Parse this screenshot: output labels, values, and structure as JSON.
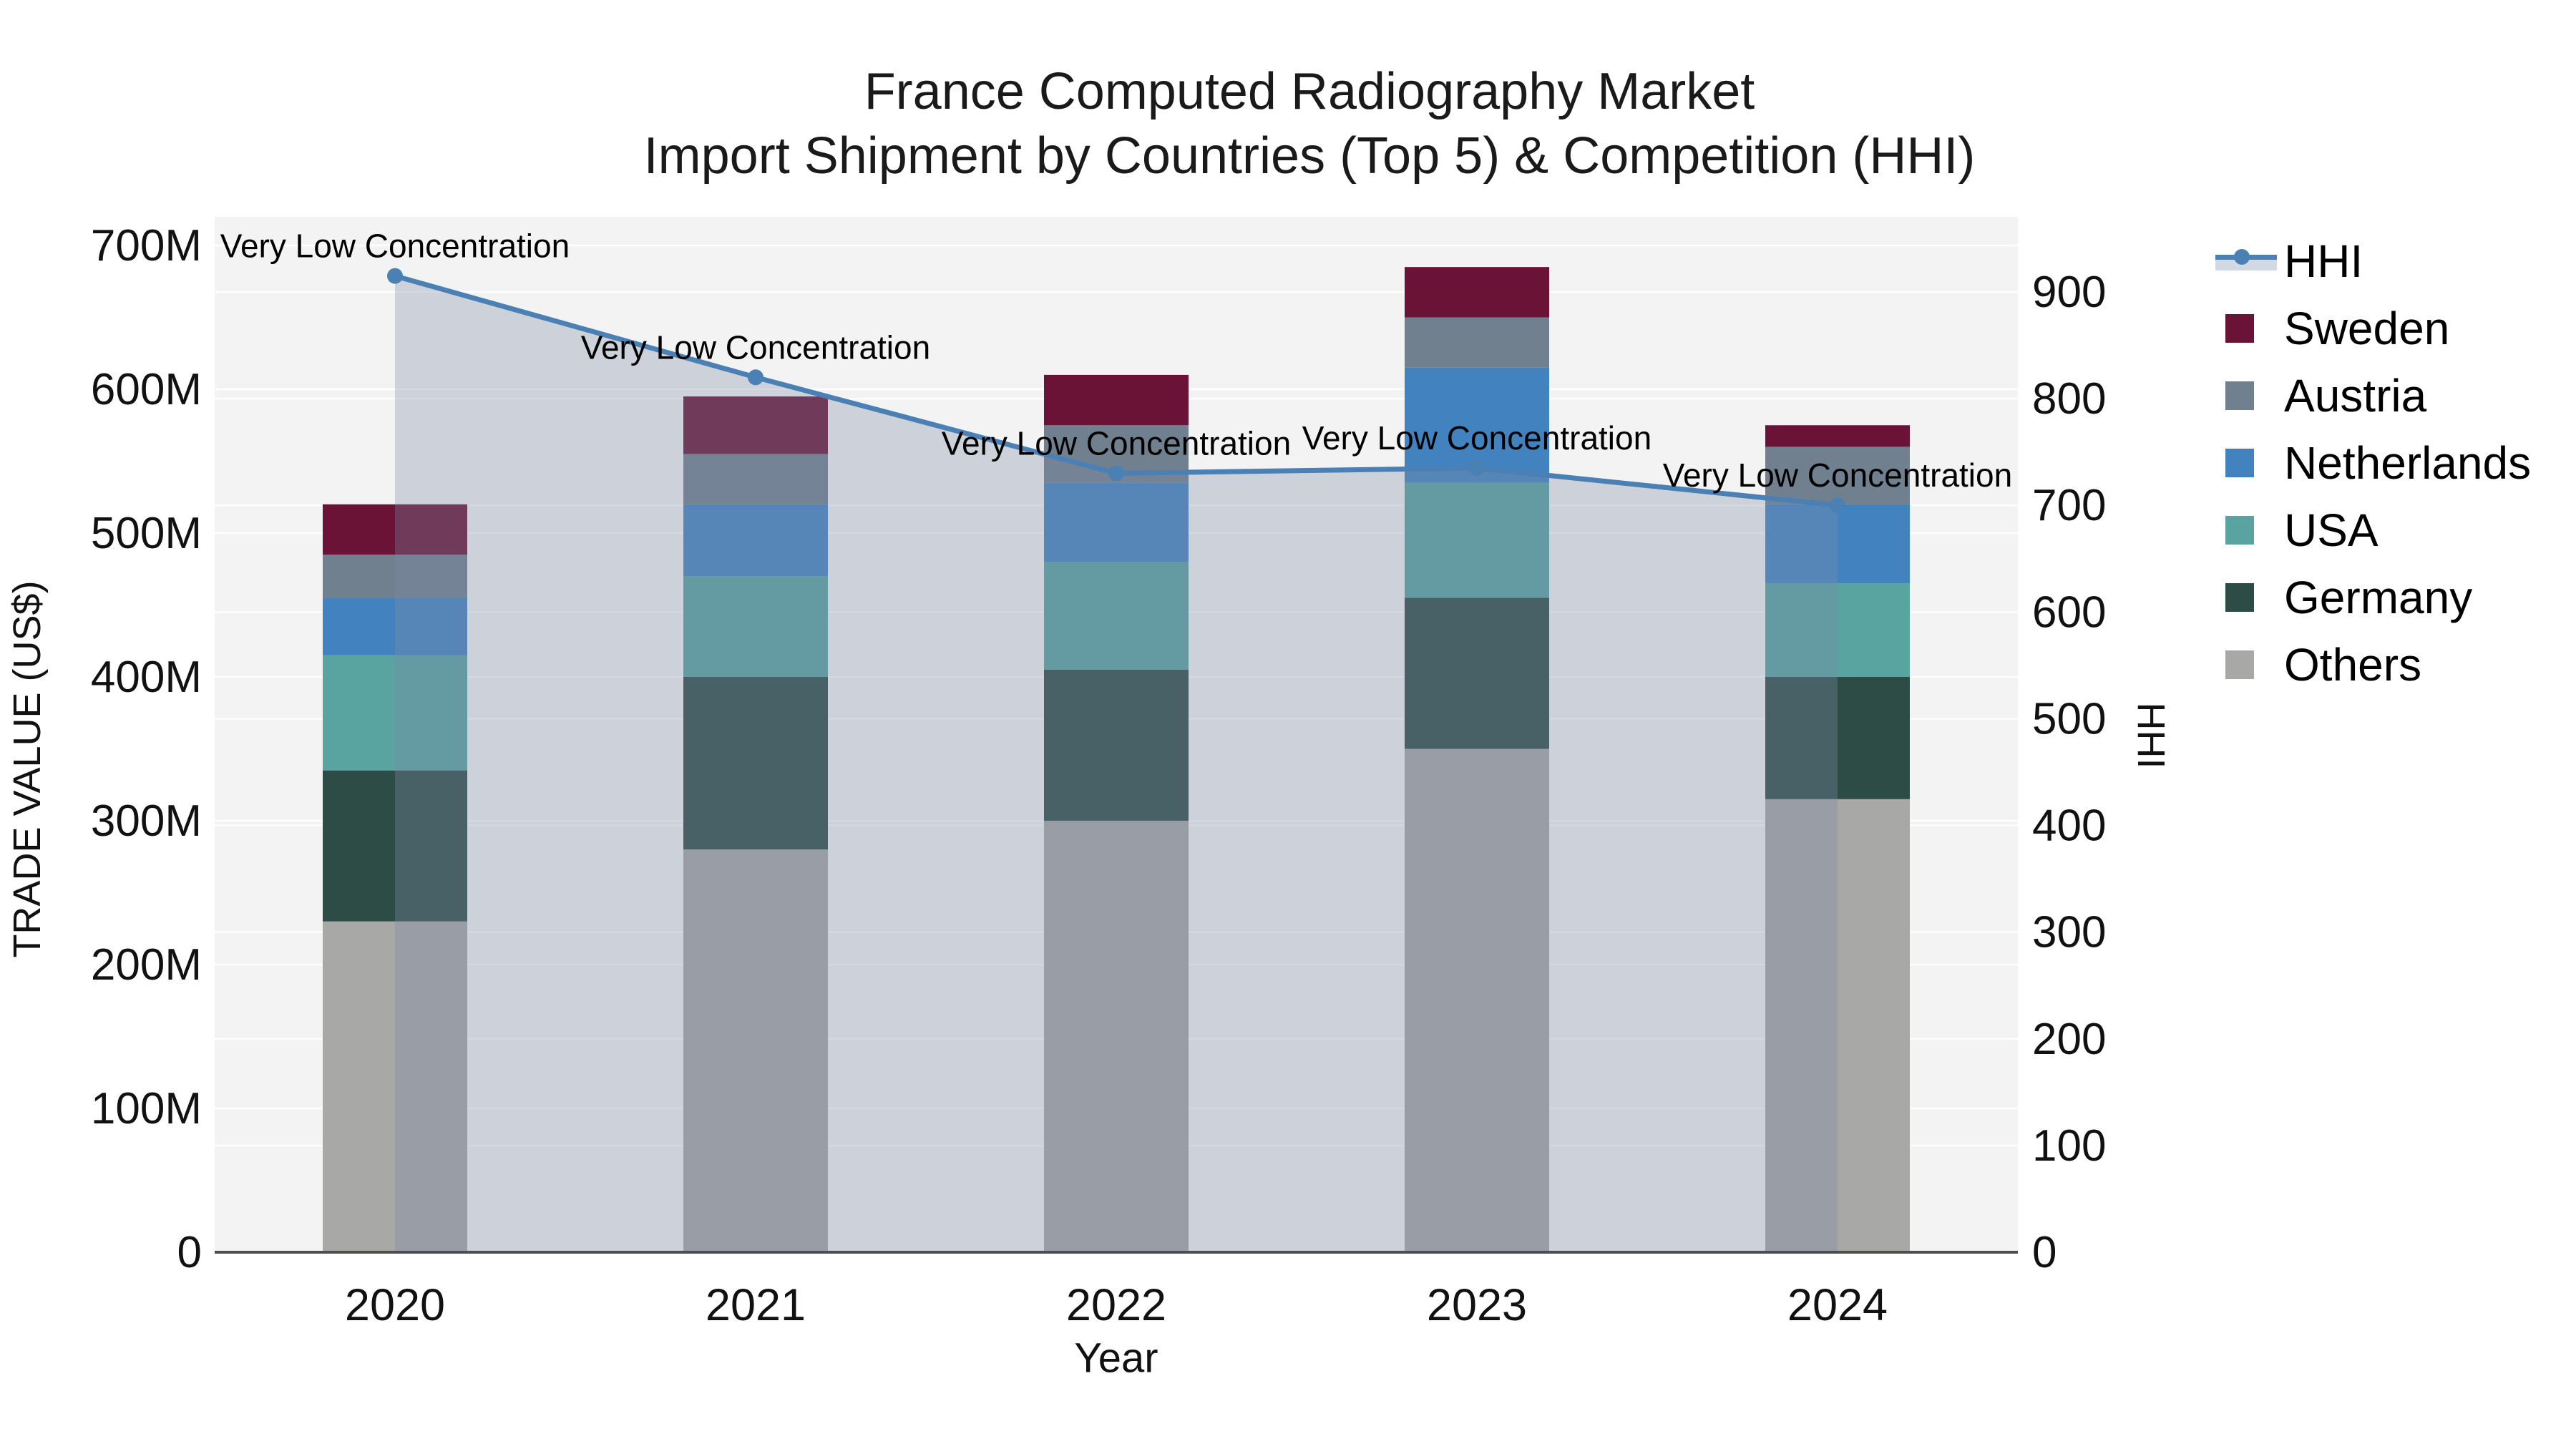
{
  "chart_data": {
    "type": "combo-stacked-bar-line",
    "title": "France Computed Radiography Market",
    "subtitle": "Import Shipment by Countries (Top 5) & Competition (HHI)",
    "xlabel": "Year",
    "categories": [
      "2020",
      "2021",
      "2022",
      "2023",
      "2024"
    ],
    "stack_unit": "million US$",
    "series": [
      {
        "name": "Others",
        "color_key": "Others",
        "values": [
          230,
          280,
          300,
          350,
          315
        ]
      },
      {
        "name": "Germany",
        "color_key": "Germany",
        "values": [
          105,
          120,
          105,
          105,
          85
        ]
      },
      {
        "name": "USA",
        "color_key": "USA",
        "values": [
          80,
          70,
          75,
          80,
          65
        ]
      },
      {
        "name": "Netherlands",
        "color_key": "Netherlands",
        "values": [
          40,
          50,
          55,
          80,
          55
        ]
      },
      {
        "name": "Austria",
        "color_key": "Austria",
        "values": [
          30,
          35,
          40,
          35,
          40
        ]
      },
      {
        "name": "Sweden",
        "color_key": "Sweden",
        "values": [
          35,
          40,
          35,
          35,
          15
        ]
      }
    ],
    "stack_totals": [
      520,
      595,
      610,
      685,
      575
    ],
    "line_series": {
      "name": "HHI",
      "axis": "right",
      "values": [
        915,
        820,
        730,
        735,
        700
      ],
      "annotations": [
        "Very Low Concentration",
        "Very Low Concentration",
        "Very Low Concentration",
        "Very Low Concentration",
        "Very Low Concentration"
      ]
    },
    "left_axis": {
      "title": "TRADE VALUE (US$)",
      "range": [
        0,
        700000000
      ],
      "ticks": [
        {
          "value": 0,
          "label": "0"
        },
        {
          "value": 100,
          "label": "100M"
        },
        {
          "value": 200,
          "label": "200M"
        },
        {
          "value": 300,
          "label": "300M"
        },
        {
          "value": 400,
          "label": "400M"
        },
        {
          "value": 500,
          "label": "500M"
        },
        {
          "value": 600,
          "label": "600M"
        },
        {
          "value": 700,
          "label": "700M"
        }
      ]
    },
    "right_axis": {
      "title": "HHI",
      "range": [
        0,
        900
      ],
      "ticks": [
        {
          "value": 0,
          "label": "0"
        },
        {
          "value": 100,
          "label": "100"
        },
        {
          "value": 200,
          "label": "200"
        },
        {
          "value": 300,
          "label": "300"
        },
        {
          "value": 400,
          "label": "400"
        },
        {
          "value": 500,
          "label": "500"
        },
        {
          "value": 600,
          "label": "600"
        },
        {
          "value": 700,
          "label": "700"
        },
        {
          "value": 800,
          "label": "800"
        },
        {
          "value": 900,
          "label": "900"
        }
      ]
    },
    "legend": {
      "position": "right",
      "entries": [
        {
          "label": "HHI",
          "type": "line",
          "key": "HHI"
        },
        {
          "label": "Sweden",
          "type": "swatch",
          "key": "Sweden"
        },
        {
          "label": "Austria",
          "type": "swatch",
          "key": "Austria"
        },
        {
          "label": "Netherlands",
          "type": "swatch",
          "key": "Netherlands"
        },
        {
          "label": "USA",
          "type": "swatch",
          "key": "USA"
        },
        {
          "label": "Germany",
          "type": "swatch",
          "key": "Germany"
        },
        {
          "label": "Others",
          "type": "swatch",
          "key": "Others"
        }
      ]
    }
  },
  "colors": {
    "series": {
      "Sweden": "#6a1337",
      "Austria": "#71808e",
      "Netherlands": "#4283bf",
      "USA": "#59a3a0",
      "Germany": "#2d4c46",
      "Others": "#a8a8a6"
    },
    "hhi_line": "#4a80b4",
    "hhi_area_overlay": "rgba(123,141,166,0.33)",
    "legend_band": "#d3d9e2",
    "plot_bg": "#f3f3f3",
    "gridline": "rgba(255,255,255,0.9)",
    "axis_line": "#4d4d4d",
    "tick_text": "#111111",
    "annotation_text": "#000000",
    "title_text": "#1a1a1a"
  }
}
